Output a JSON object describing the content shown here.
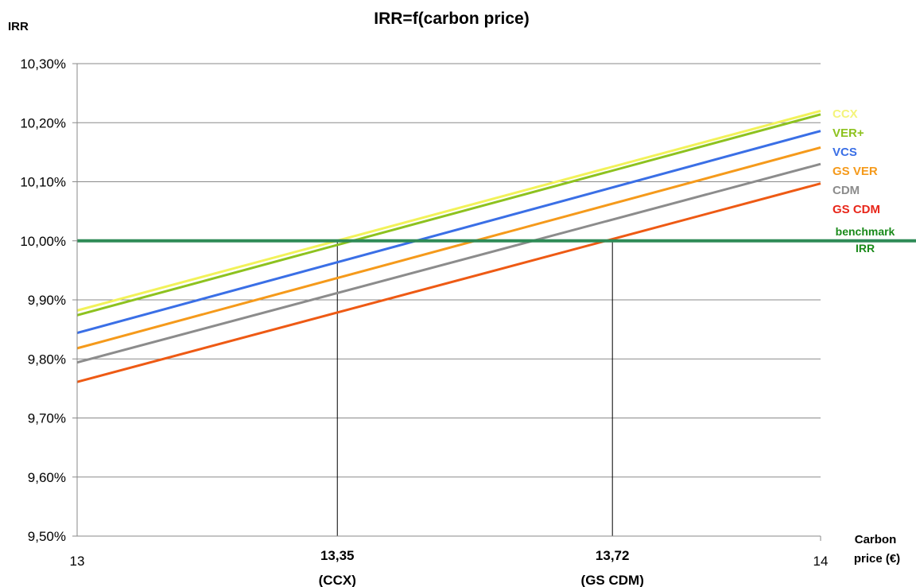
{
  "chart_data": {
    "type": "line",
    "title": "IRR=f(carbon price)",
    "ylabel": "IRR",
    "xlabel": [
      "Carbon",
      "price (€)"
    ],
    "xlim": [
      13,
      14
    ],
    "ylim": [
      0.095,
      0.103
    ],
    "y_ticks": [
      {
        "value": 0.095,
        "label": "9,50%"
      },
      {
        "value": 0.096,
        "label": "9,60%"
      },
      {
        "value": 0.097,
        "label": "9,70%"
      },
      {
        "value": 0.098,
        "label": "9,80%"
      },
      {
        "value": 0.099,
        "label": "9,90%"
      },
      {
        "value": 0.1,
        "label": "10,00%"
      },
      {
        "value": 0.101,
        "label": "10,10%"
      },
      {
        "value": 0.102,
        "label": "10,20%"
      },
      {
        "value": 0.103,
        "label": "10,30%"
      }
    ],
    "x_ticks": [
      {
        "value": 13,
        "label": "13",
        "sub": "",
        "bold": false
      },
      {
        "value": 13.35,
        "label": "13,35",
        "sub": "(CCX)",
        "bold": true
      },
      {
        "value": 13.72,
        "label": "13,72",
        "sub": "(GS CDM)",
        "bold": true
      },
      {
        "value": 14,
        "label": "14",
        "sub": "",
        "bold": false
      }
    ],
    "grid": true,
    "series": [
      {
        "name": "CCX",
        "color": "#f2f25a",
        "x": [
          13,
          14
        ],
        "y": [
          0.09882,
          0.1022
        ]
      },
      {
        "name": "VER+",
        "color": "#8dc21f",
        "x": [
          13,
          14
        ],
        "y": [
          0.09874,
          0.10214
        ]
      },
      {
        "name": "VCS",
        "color": "#3a6fe6",
        "x": [
          13,
          14
        ],
        "y": [
          0.09844,
          0.10186
        ]
      },
      {
        "name": "GS VER",
        "color": "#f59a1b",
        "x": [
          13,
          14
        ],
        "y": [
          0.09818,
          0.10158
        ]
      },
      {
        "name": "CDM",
        "color": "#8c8c8c",
        "x": [
          13,
          14
        ],
        "y": [
          0.09794,
          0.1013
        ]
      },
      {
        "name": "GS CDM",
        "color": "#ee5a14",
        "x": [
          13,
          14
        ],
        "y": [
          0.09761,
          0.10097
        ]
      }
    ],
    "series_label_colors": {
      "CCX": "#f4f47a",
      "VER+": "#8dc21f",
      "VCS": "#3a6fe6",
      "GS VER": "#f59a1b",
      "CDM": "#8c8c8c",
      "GS CDM": "#e8261a"
    },
    "benchmark": {
      "label": [
        "benchmark",
        "IRR"
      ],
      "value": 0.1,
      "color": "#2e8b57",
      "label_color": "#1a8a1a"
    },
    "markers": [
      {
        "x": 13.35,
        "y": 0.1
      },
      {
        "x": 13.72,
        "y": 0.1
      }
    ]
  }
}
